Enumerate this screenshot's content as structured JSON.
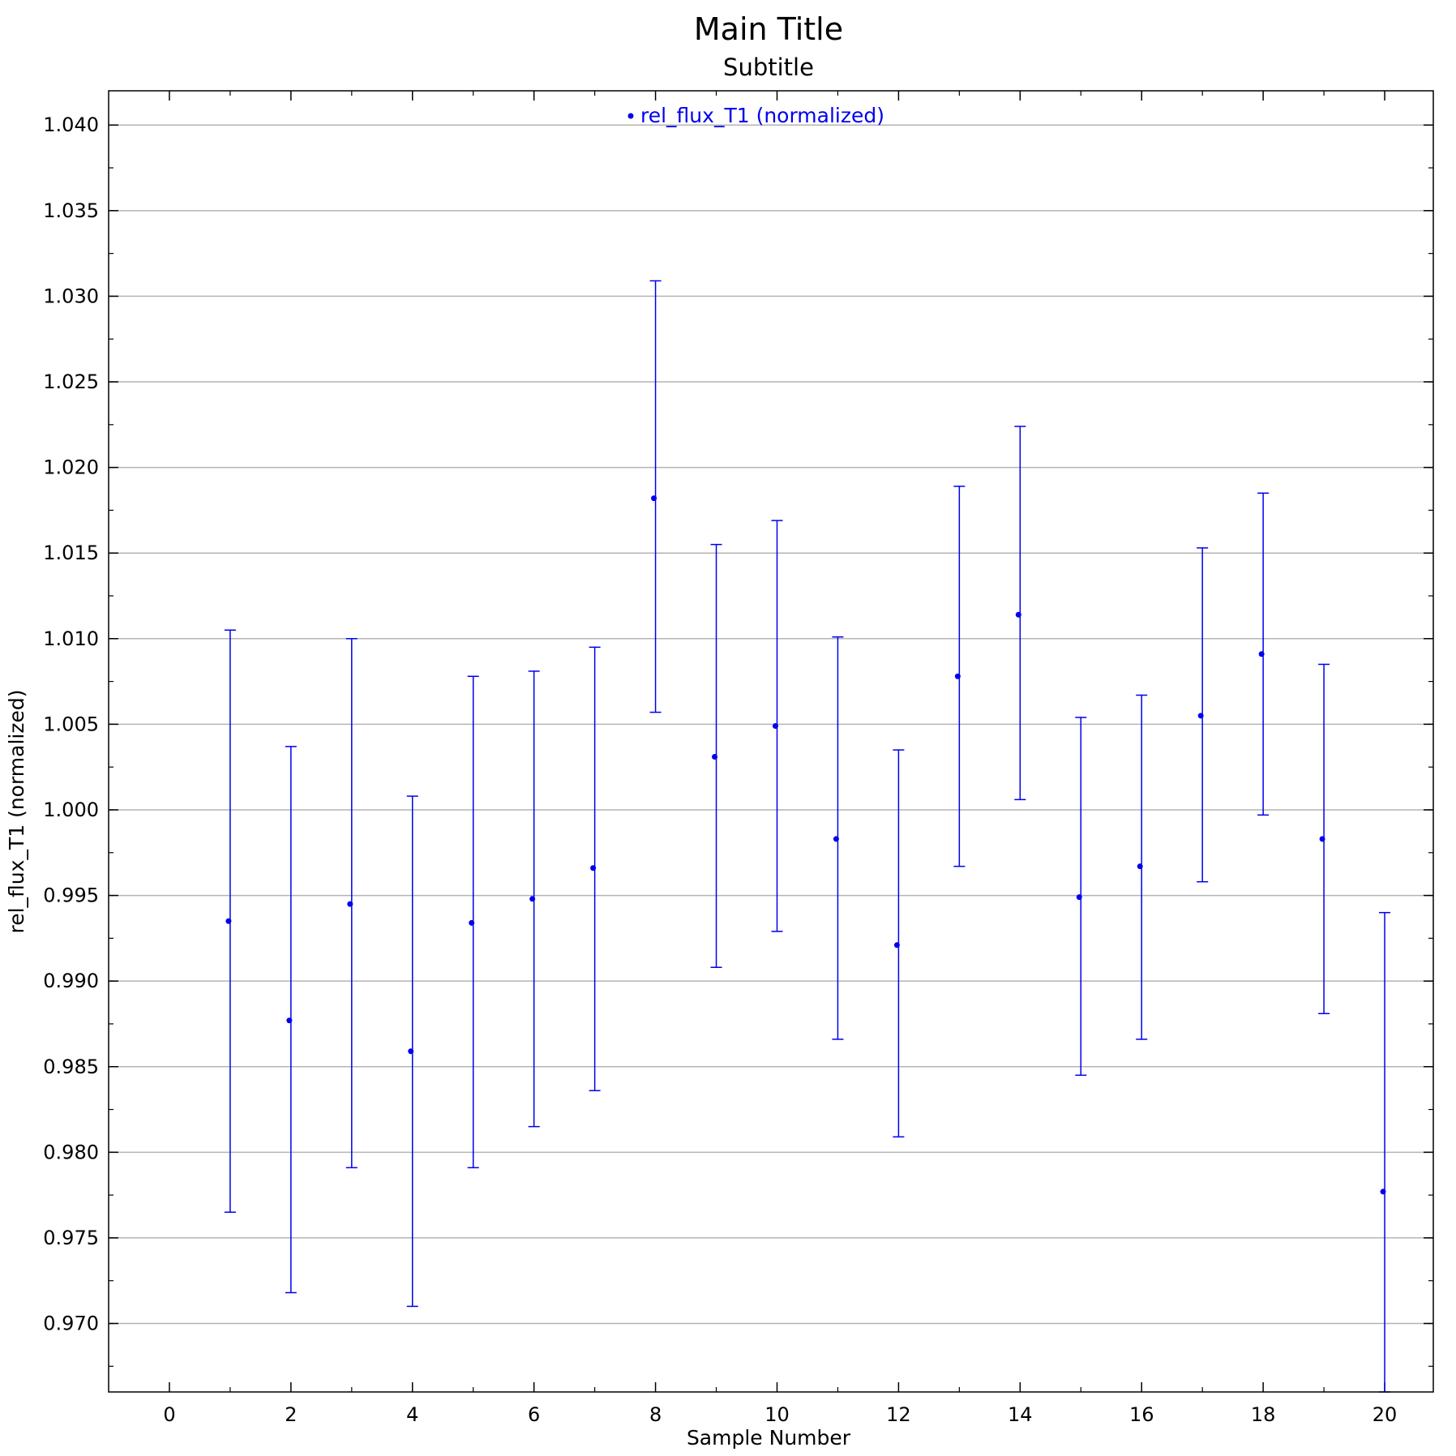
{
  "chart_data": {
    "type": "scatter",
    "title": "Main Title",
    "subtitle": "Subtitle",
    "xlabel": "Sample Number",
    "ylabel": "rel_flux_T1 (normalized)",
    "xlim": [
      -1,
      20.8
    ],
    "ylim": [
      0.966,
      1.042
    ],
    "xticks": [
      "0",
      "2",
      "4",
      "6",
      "8",
      "10",
      "12",
      "14",
      "16",
      "18",
      "20"
    ],
    "yticks": [
      "0.970",
      "0.975",
      "0.980",
      "0.985",
      "0.990",
      "0.995",
      "1.000",
      "1.005",
      "1.010",
      "1.015",
      "1.020",
      "1.025",
      "1.030",
      "1.035",
      "1.040"
    ],
    "grid": "horizontal",
    "legend_position": "top-center",
    "color": "#0000ee",
    "series": [
      {
        "name": "rel_flux_T1 (normalized)",
        "points": [
          {
            "x": 1,
            "y": 0.9935,
            "ylo": 0.9765,
            "yhi": 1.0105
          },
          {
            "x": 2,
            "y": 0.9877,
            "ylo": 0.9718,
            "yhi": 1.0037
          },
          {
            "x": 3,
            "y": 0.9945,
            "ylo": 0.9791,
            "yhi": 1.01
          },
          {
            "x": 4,
            "y": 0.9859,
            "ylo": 0.971,
            "yhi": 1.0008
          },
          {
            "x": 5,
            "y": 0.9934,
            "ylo": 0.9791,
            "yhi": 1.0078
          },
          {
            "x": 6,
            "y": 0.9948,
            "ylo": 0.9815,
            "yhi": 1.0081
          },
          {
            "x": 7,
            "y": 0.9966,
            "ylo": 0.9836,
            "yhi": 1.0095
          },
          {
            "x": 8,
            "y": 1.0182,
            "ylo": 1.0057,
            "yhi": 1.0309
          },
          {
            "x": 9,
            "y": 1.0031,
            "ylo": 0.9908,
            "yhi": 1.0155
          },
          {
            "x": 10,
            "y": 1.0049,
            "ylo": 0.9929,
            "yhi": 1.0169
          },
          {
            "x": 11,
            "y": 0.9983,
            "ylo": 0.9866,
            "yhi": 1.0101
          },
          {
            "x": 12,
            "y": 0.9921,
            "ylo": 0.9809,
            "yhi": 1.0035
          },
          {
            "x": 13,
            "y": 1.0078,
            "ylo": 0.9967,
            "yhi": 1.0189
          },
          {
            "x": 14,
            "y": 1.0114,
            "ylo": 1.0006,
            "yhi": 1.0224
          },
          {
            "x": 15,
            "y": 0.9949,
            "ylo": 0.9845,
            "yhi": 1.0054
          },
          {
            "x": 16,
            "y": 0.9967,
            "ylo": 0.9866,
            "yhi": 1.0067
          },
          {
            "x": 17,
            "y": 1.0055,
            "ylo": 0.9958,
            "yhi": 1.0153
          },
          {
            "x": 18,
            "y": 1.0091,
            "ylo": 0.9997,
            "yhi": 1.0185
          },
          {
            "x": 19,
            "y": 0.9983,
            "ylo": 0.9881,
            "yhi": 1.0085
          },
          {
            "x": 20,
            "y": 0.9777,
            "ylo": 0.966,
            "yhi": 0.994
          }
        ]
      }
    ]
  }
}
